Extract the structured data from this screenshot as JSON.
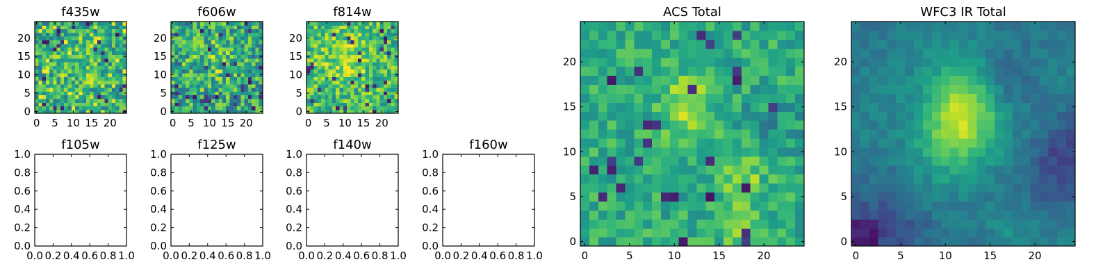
{
  "figure": {
    "colormap": "viridis",
    "colors": {
      "low": "#440154",
      "mid": "#21918c",
      "high": "#fde725",
      "frame": "#000000"
    }
  },
  "chart_data": [
    {
      "type": "heatmap",
      "title": "f435w",
      "grid_size": 25,
      "xticks": [
        "0",
        "5",
        "10",
        "15",
        "20"
      ],
      "yticks": [
        "0",
        "5",
        "10",
        "15",
        "20"
      ],
      "xlim": [
        -0.5,
        24.5
      ],
      "ylim": [
        -0.5,
        24.5
      ],
      "grid": false,
      "appearance": "noisy, mostly green-teal with scattered yellow and dark-purple pixels"
    },
    {
      "type": "heatmap",
      "title": "f606w",
      "grid_size": 25,
      "xticks": [
        "0",
        "5",
        "10",
        "15",
        "20"
      ],
      "yticks": [
        "0",
        "5",
        "10",
        "15",
        "20"
      ],
      "xlim": [
        -0.5,
        24.5
      ],
      "ylim": [
        -0.5,
        24.5
      ],
      "grid": false,
      "appearance": "noisy, mixed teal/green with yellow specks"
    },
    {
      "type": "heatmap",
      "title": "f814w",
      "grid_size": 25,
      "xticks": [
        "0",
        "5",
        "10",
        "15",
        "20"
      ],
      "yticks": [
        "0",
        "5",
        "10",
        "15",
        "20"
      ],
      "xlim": [
        -0.5,
        24.5
      ],
      "ylim": [
        -0.5,
        24.5
      ],
      "grid": false,
      "appearance": "noisy, brighter yellow-green overall"
    },
    {
      "type": "empty",
      "title": "f105w",
      "xticks": [
        "0.0",
        "0.2",
        "0.4",
        "0.6",
        "0.8",
        "1.0"
      ],
      "yticks": [
        "0.0",
        "0.2",
        "0.4",
        "0.6",
        "0.8",
        "1.0"
      ],
      "xlim": [
        0,
        1
      ],
      "ylim": [
        0,
        1
      ]
    },
    {
      "type": "empty",
      "title": "f125w",
      "xticks": [
        "0.0",
        "0.2",
        "0.4",
        "0.6",
        "0.8",
        "1.0"
      ],
      "yticks": [
        "0.0",
        "0.2",
        "0.4",
        "0.6",
        "0.8",
        "1.0"
      ],
      "xlim": [
        0,
        1
      ],
      "ylim": [
        0,
        1
      ]
    },
    {
      "type": "empty",
      "title": "f140w",
      "xticks": [
        "0.0",
        "0.2",
        "0.4",
        "0.6",
        "0.8",
        "1.0"
      ],
      "yticks": [
        "0.0",
        "0.2",
        "0.4",
        "0.6",
        "0.8",
        "1.0"
      ],
      "xlim": [
        0,
        1
      ],
      "ylim": [
        0,
        1
      ]
    },
    {
      "type": "empty",
      "title": "f160w",
      "xticks": [
        "0.0",
        "0.2",
        "0.4",
        "0.6",
        "0.8",
        "1.0"
      ],
      "yticks": [
        "0.0",
        "0.2",
        "0.4",
        "0.6",
        "0.8",
        "1.0"
      ],
      "xlim": [
        0,
        1
      ],
      "ylim": [
        0,
        1
      ]
    },
    {
      "type": "heatmap",
      "title": "ACS Total",
      "grid_size": 25,
      "xticks": [
        "0",
        "5",
        "10",
        "15",
        "20"
      ],
      "yticks": [
        "0",
        "5",
        "10",
        "15",
        "20"
      ],
      "xlim": [
        -0.5,
        24.5
      ],
      "ylim": [
        -0.5,
        24.5
      ],
      "grid": false,
      "appearance": "green field with yellow diagonal blob near x 10-13, y 13-17 and yellow patch near x 16-19, y 0-9; dark pixels at right edge"
    },
    {
      "type": "heatmap",
      "title": "WFC3 IR Total",
      "grid_size": 25,
      "xticks": [
        "0",
        "5",
        "10",
        "15",
        "20"
      ],
      "yticks": [
        "0",
        "5",
        "10",
        "15",
        "20"
      ],
      "xlim": [
        -0.5,
        24.5
      ],
      "ylim": [
        -0.5,
        24.5
      ],
      "grid": false,
      "appearance": "smooth; bright yellow source peaking near x 12, y 15, elongated diagonally; dark purple at bottom-left and right edges"
    }
  ]
}
